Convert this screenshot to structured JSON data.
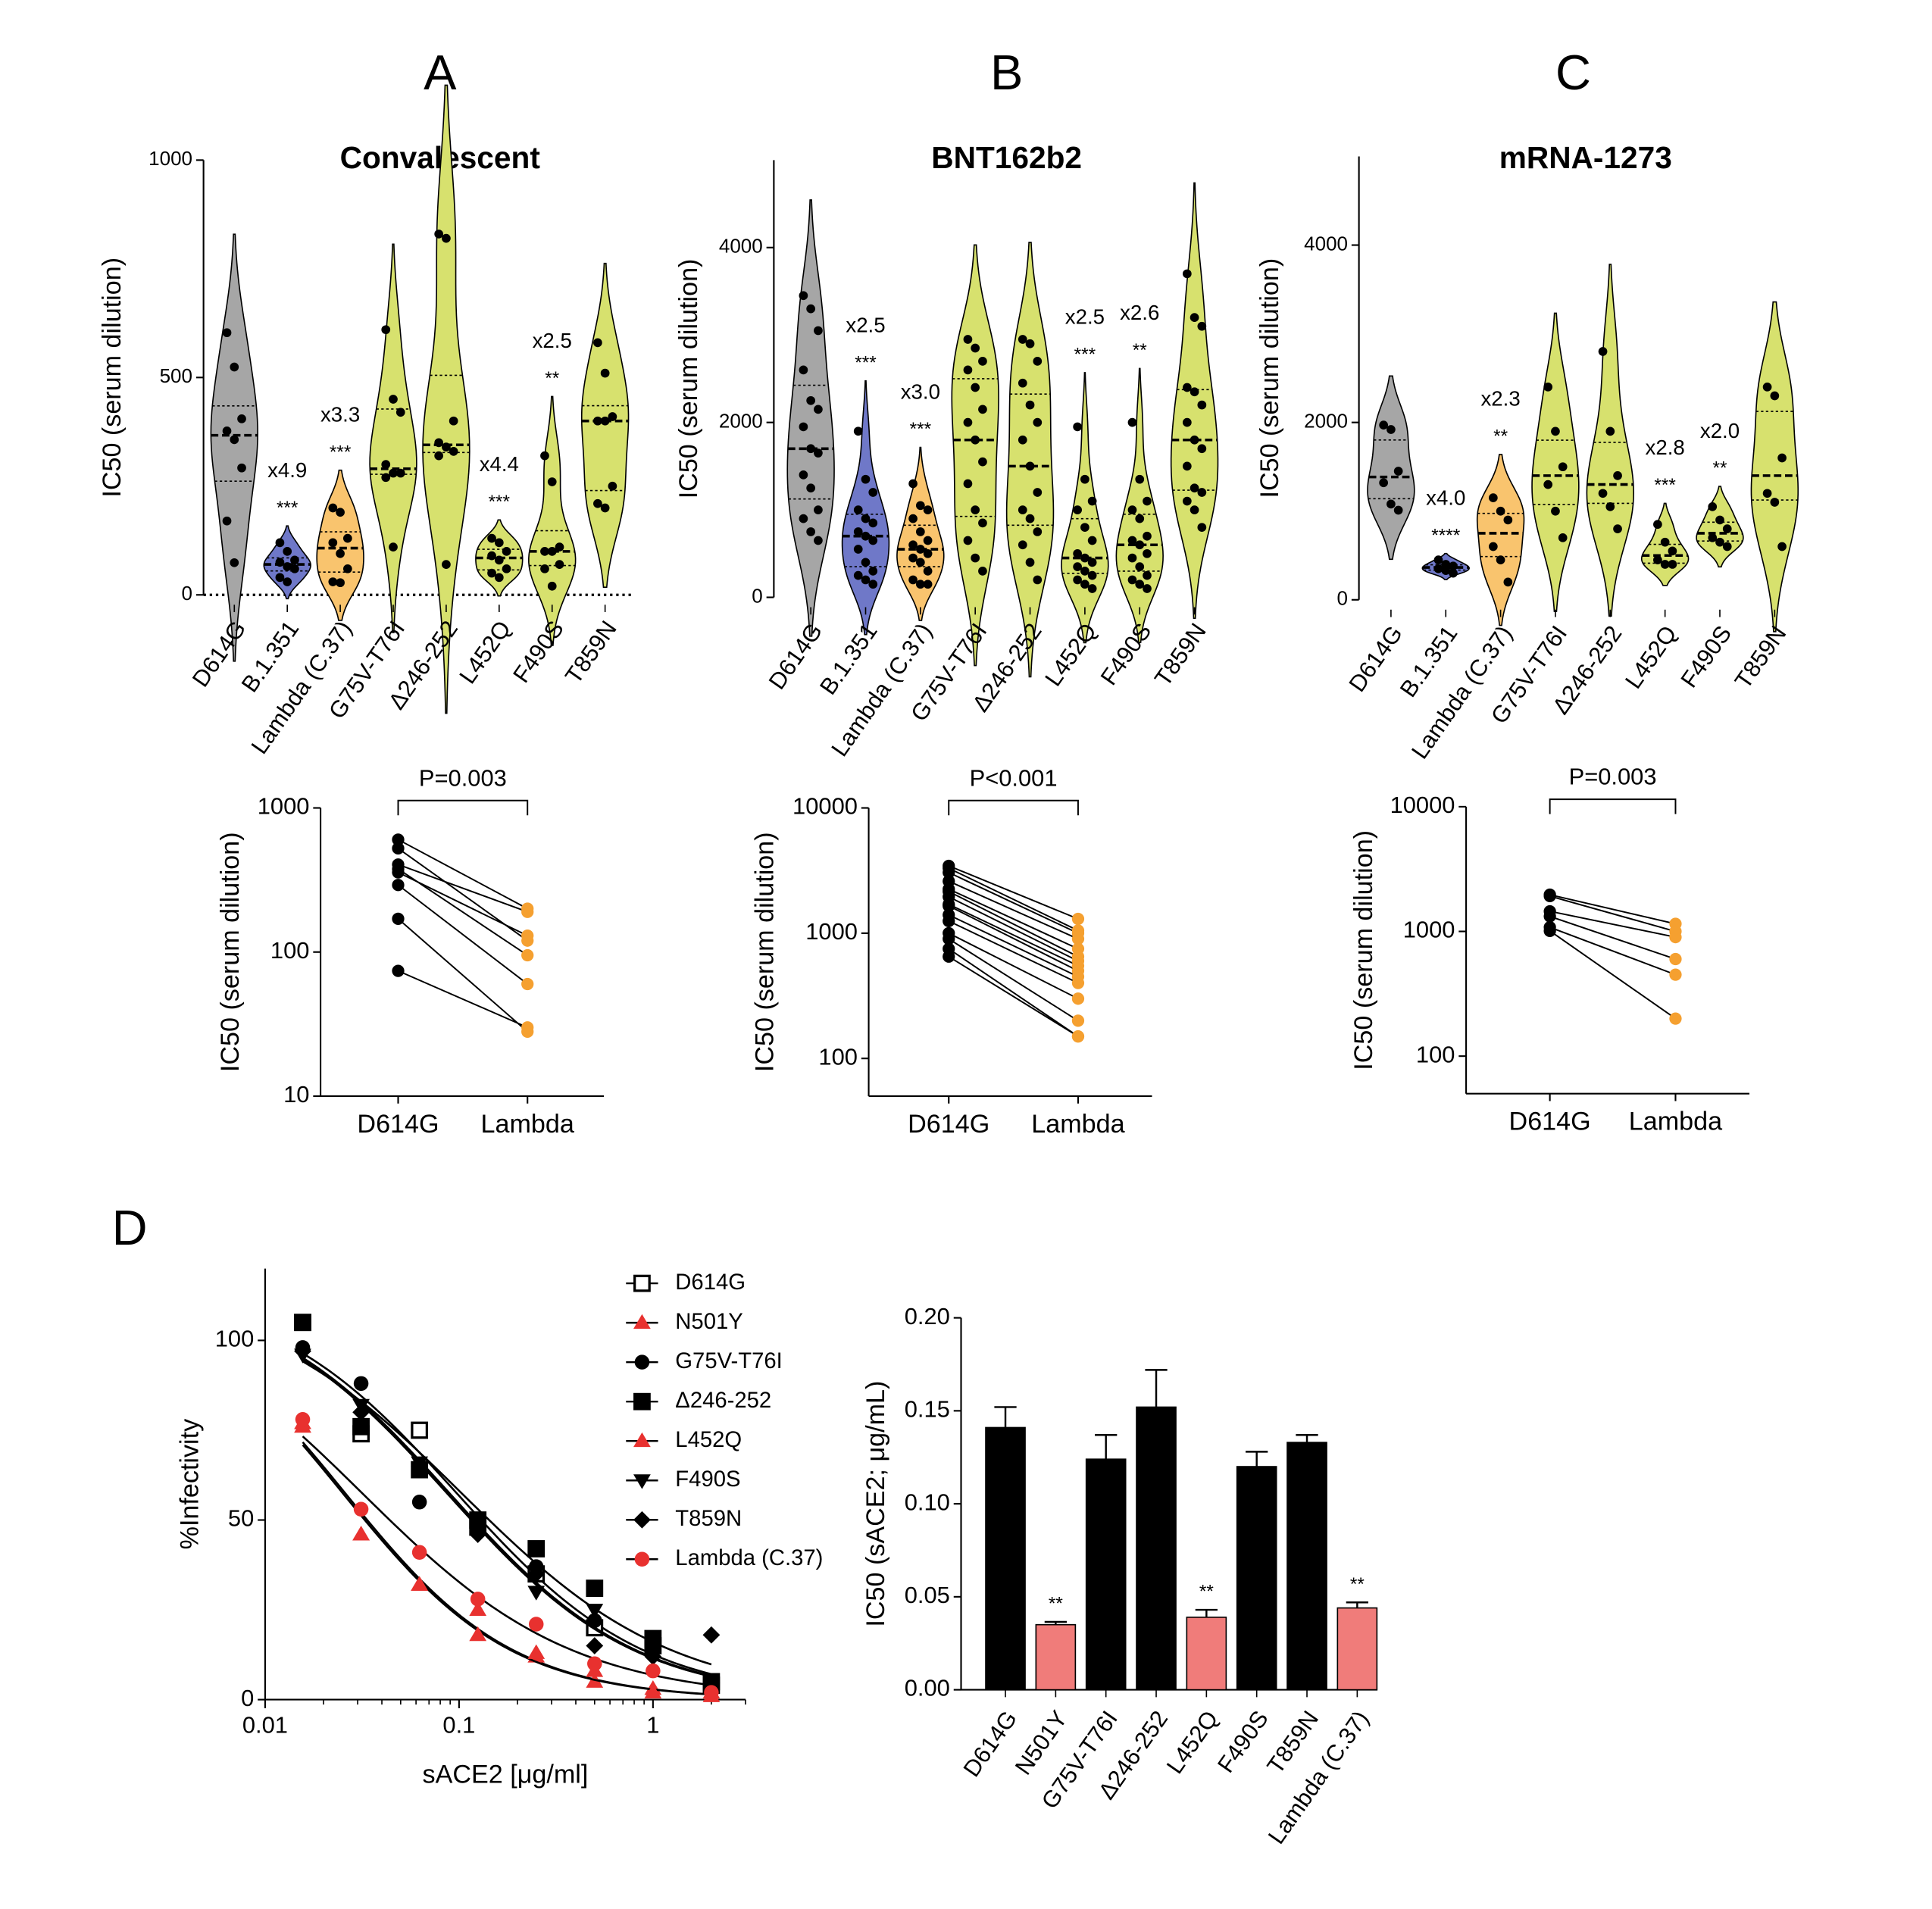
{
  "chart_data": [
    {
      "type": "violin",
      "panel": "A",
      "title": "Convalescent",
      "ylabel": "IC50 (serum dilution)",
      "categories": [
        "D614G",
        "B.1.351",
        "Lambda (C.37)",
        "G75V-T76I",
        "Δ246-252",
        "L452Q",
        "F490S",
        "T859N"
      ],
      "values": [
        [
          603,
          524,
          405,
          377,
          357,
          292,
          170,
          74
        ],
        [
          120,
          100,
          80,
          75,
          65,
          60,
          40,
          30
        ],
        [
          200,
          190,
          130,
          120,
          95,
          60,
          30,
          28
        ],
        [
          610,
          450,
          420,
          300,
          280,
          280,
          270,
          110
        ],
        [
          830,
          820,
          400,
          350,
          340,
          330,
          320,
          70
        ],
        [
          130,
          120,
          100,
          90,
          80,
          60,
          50,
          40
        ],
        [
          320,
          260,
          110,
          100,
          100,
          70,
          60,
          20
        ],
        [
          580,
          510,
          410,
          400,
          400,
          250,
          210,
          200
        ]
      ],
      "colors": [
        "#a6a6a6",
        "#6f78c8",
        "#f9c46e",
        "#d7e16e",
        "#d7e16e",
        "#d7e16e",
        "#d7e16e",
        "#d7e16e"
      ],
      "fold_labels": [
        null,
        "x4.9",
        "x3.3",
        null,
        null,
        "x4.4",
        "x2.5",
        null
      ],
      "significance": [
        null,
        "***",
        "***",
        null,
        null,
        "***",
        "**",
        null
      ],
      "ylim": [
        0,
        1000
      ],
      "yticks": [
        0,
        500,
        1000
      ],
      "zero_line": true
    },
    {
      "type": "violin",
      "panel": "B",
      "title": "BNT162b2",
      "ylabel": "IC50 (serum dilution)",
      "categories": [
        "D614G",
        "B.1.351",
        "Lambda (C.37)",
        "G75V-T76I",
        "Δ246-252",
        "L452Q",
        "F490S",
        "T859N"
      ],
      "values": [
        [
          3450,
          3300,
          3050,
          2600,
          2250,
          2150,
          1950,
          1700,
          1650,
          1400,
          1250,
          1000,
          900,
          750,
          650
        ],
        [
          1900,
          1350,
          1200,
          1000,
          900,
          850,
          750,
          700,
          650,
          550,
          400,
          300,
          250,
          200,
          150
        ],
        [
          1300,
          1050,
          1000,
          900,
          750,
          650,
          600,
          550,
          500,
          450,
          400,
          300,
          200,
          150,
          150
        ],
        [
          2950,
          2850,
          2700,
          2600,
          2400,
          2150,
          2000,
          1800,
          1550,
          1300,
          1000,
          850,
          650,
          450,
          300
        ],
        [
          2950,
          2900,
          2700,
          2450,
          2200,
          2000,
          1800,
          1500,
          1200,
          1000,
          900,
          750,
          600,
          400,
          200
        ],
        [
          1950,
          1350,
          1100,
          1000,
          800,
          650,
          500,
          450,
          400,
          350,
          300,
          250,
          200,
          150,
          100
        ],
        [
          2000,
          1350,
          1100,
          1000,
          900,
          700,
          650,
          600,
          500,
          450,
          350,
          250,
          200,
          150,
          100
        ],
        [
          3700,
          3200,
          3100,
          2400,
          2350,
          2200,
          2000,
          1800,
          1700,
          1500,
          1250,
          1200,
          1100,
          1000,
          800
        ]
      ],
      "colors": [
        "#a6a6a6",
        "#6f78c8",
        "#f9c46e",
        "#d7e16e",
        "#d7e16e",
        "#d7e16e",
        "#d7e16e",
        "#d7e16e"
      ],
      "fold_labels": [
        null,
        "x2.5",
        "x3.0",
        null,
        null,
        "x2.5",
        "x2.6",
        null
      ],
      "significance": [
        null,
        "***",
        "***",
        null,
        null,
        "***",
        "**",
        null
      ],
      "ylim": [
        0,
        5000
      ],
      "yticks": [
        0,
        2000,
        4000
      ],
      "zero_line": false
    },
    {
      "type": "violin",
      "panel": "C",
      "title": "mRNA-1273",
      "ylabel": "IC50 (serum dilution)",
      "categories": [
        "D614G",
        "B.1.351",
        "Lambda (C.37)",
        "G75V-T76I",
        "Δ246-252",
        "L452Q",
        "F490S",
        "T859N"
      ],
      "values": [
        [
          1970,
          1920,
          1450,
          1320,
          1080,
          1010
        ],
        [
          450,
          400,
          380,
          350,
          330,
          300
        ],
        [
          1150,
          1000,
          900,
          600,
          450,
          200
        ],
        [
          2400,
          1900,
          1500,
          1300,
          1000,
          700
        ],
        [
          2800,
          1900,
          1400,
          1200,
          1050,
          800
        ],
        [
          850,
          650,
          550,
          450,
          400,
          400
        ],
        [
          1050,
          900,
          800,
          700,
          650,
          600
        ],
        [
          2400,
          2300,
          1600,
          1200,
          1100,
          600
        ]
      ],
      "colors": [
        "#a6a6a6",
        "#6f78c8",
        "#f9c46e",
        "#d7e16e",
        "#d7e16e",
        "#d7e16e",
        "#d7e16e",
        "#d7e16e"
      ],
      "fold_labels": [
        null,
        "x4.0",
        "x2.3",
        null,
        null,
        "x2.8",
        "x2.0",
        null
      ],
      "significance": [
        null,
        "****",
        "**",
        null,
        null,
        "***",
        "**",
        null
      ],
      "ylim": [
        0,
        5000
      ],
      "yticks": [
        0,
        2000,
        4000
      ],
      "zero_line": false
    },
    {
      "type": "paired",
      "ylabel": "IC50 (serum dilution)",
      "annotation": "P=0.003",
      "log_y": true,
      "ylim": [
        10,
        1000
      ],
      "yticks": [
        10,
        100,
        1000
      ],
      "series": [
        {
          "name": "D614G",
          "color": "#000000",
          "values": [
            603,
            524,
            405,
            377,
            357,
            292,
            170,
            74
          ]
        },
        {
          "name": "Lambda",
          "color": "#f5a030",
          "values": [
            200,
            120,
            190,
            95,
            130,
            60,
            28,
            30
          ]
        }
      ]
    },
    {
      "type": "paired",
      "ylabel": "IC50 (serum dilution)",
      "annotation": "P<0.001",
      "log_y": true,
      "ylim": [
        50,
        10000
      ],
      "yticks": [
        100,
        1000,
        10000
      ],
      "series": [
        {
          "name": "D614G",
          "color": "#000000",
          "values": [
            3450,
            3300,
            3050,
            2600,
            2250,
            2150,
            1950,
            1700,
            1650,
            1400,
            1250,
            1000,
            900,
            750,
            650
          ]
        },
        {
          "name": "Lambda",
          "color": "#f5a030",
          "values": [
            1300,
            1050,
            1000,
            900,
            750,
            650,
            600,
            550,
            500,
            450,
            400,
            300,
            200,
            150,
            150
          ]
        }
      ]
    },
    {
      "type": "paired",
      "ylabel": "IC50 (serum dilution)",
      "annotation": "P=0.003",
      "log_y": true,
      "ylim": [
        50,
        10000
      ],
      "yticks": [
        100,
        1000,
        10000
      ],
      "series": [
        {
          "name": "D614G",
          "color": "#000000",
          "values": [
            1970,
            1920,
            1450,
            1320,
            1080,
            1010
          ]
        },
        {
          "name": "Lambda",
          "color": "#f5a030",
          "values": [
            1150,
            1000,
            900,
            600,
            450,
            200
          ]
        }
      ]
    },
    {
      "type": "dose_response",
      "panel": "D",
      "xlabel": "sACE2 [μg/ml]",
      "ylabel": "%Infectivity",
      "log_x": true,
      "x": [
        0.015625,
        0.03125,
        0.0625,
        0.125,
        0.25,
        0.5,
        1,
        2
      ],
      "xlim": [
        0.01,
        3
      ],
      "xticks": [
        0.01,
        0.1,
        1
      ],
      "ylim": [
        0,
        120
      ],
      "yticks": [
        0,
        50,
        100
      ],
      "series": [
        {
          "name": "D614G",
          "color": "#000000",
          "marker": "square-open",
          "values": [
            105,
            74,
            75,
            48,
            35,
            20,
            15,
            4
          ]
        },
        {
          "name": "N501Y",
          "color": "#e8312f",
          "marker": "triangle",
          "values": [
            77,
            46,
            32,
            25,
            12,
            5,
            3,
            2
          ]
        },
        {
          "name": "G75V-T76I",
          "color": "#000000",
          "marker": "circle",
          "values": [
            98,
            88,
            55,
            50,
            37,
            22,
            14,
            3
          ]
        },
        {
          "name": "Δ246-252",
          "color": "#000000",
          "marker": "square",
          "values": [
            105,
            76,
            64,
            50,
            42,
            31,
            17,
            5
          ]
        },
        {
          "name": "L452Q",
          "color": "#e8312f",
          "marker": "triangle",
          "values": [
            76,
            46,
            32,
            18,
            13,
            8,
            2,
            1
          ]
        },
        {
          "name": "F490S",
          "color": "#000000",
          "marker": "triangle-down",
          "values": [
            96,
            82,
            66,
            46,
            30,
            25,
            15,
            3
          ]
        },
        {
          "name": "T859N",
          "color": "#000000",
          "marker": "diamond",
          "values": [
            97,
            80,
            65,
            46,
            35,
            15,
            12,
            18
          ]
        },
        {
          "name": "Lambda (C.37)",
          "color": "#e8312f",
          "marker": "circle",
          "values": [
            78,
            53,
            41,
            28,
            21,
            10,
            8,
            2
          ]
        }
      ]
    },
    {
      "type": "bar",
      "ylabel": "IC50 (sACE2; μg/mL)",
      "categories": [
        "D614G",
        "N501Y",
        "G75V-T76I",
        "Δ246-252",
        "L452Q",
        "F490S",
        "T859N",
        "Lambda (C.37)"
      ],
      "values": [
        0.141,
        0.035,
        0.124,
        0.152,
        0.039,
        0.12,
        0.133,
        0.044
      ],
      "errors": [
        0.011,
        0.0015,
        0.013,
        0.02,
        0.004,
        0.008,
        0.004,
        0.003
      ],
      "colors": [
        "#000000",
        "#f07c7a",
        "#000000",
        "#000000",
        "#f07c7a",
        "#000000",
        "#000000",
        "#f07c7a"
      ],
      "significance": [
        null,
        "**",
        null,
        null,
        "**",
        null,
        null,
        "**"
      ],
      "ylim": [
        0,
        0.2
      ],
      "yticks": [
        {
          "value": 0,
          "label": "0.00"
        },
        {
          "value": 0.05,
          "label": "0.05"
        },
        {
          "value": 0.1,
          "label": "0.10"
        },
        {
          "value": 0.15,
          "label": "0.15"
        },
        {
          "value": 0.2,
          "label": "0.20"
        }
      ]
    }
  ]
}
